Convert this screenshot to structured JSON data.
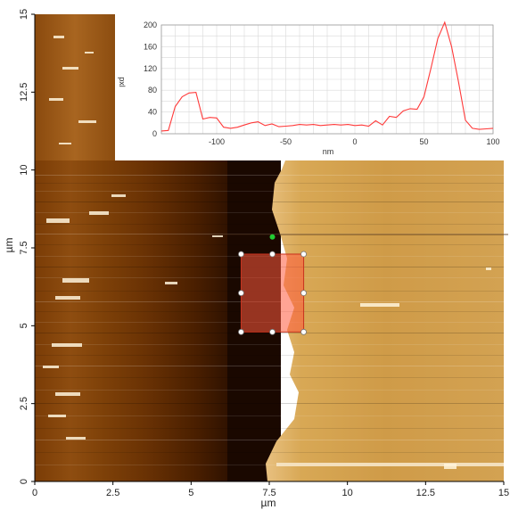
{
  "main_image": {
    "x_axis": {
      "label": "µm",
      "ticks": [
        {
          "value": 0,
          "text": "0"
        },
        {
          "value": 2.5,
          "text": "2.5"
        },
        {
          "value": 5,
          "text": "5"
        },
        {
          "value": 7.5,
          "text": "7.5"
        },
        {
          "value": 10,
          "text": "10"
        },
        {
          "value": 12.5,
          "text": "12.5"
        },
        {
          "value": 15,
          "text": "15"
        }
      ],
      "range": [
        0,
        15
      ]
    },
    "y_axis": {
      "label": "µm",
      "ticks": [
        {
          "value": 0,
          "text": "0"
        },
        {
          "value": 2.5,
          "text": "2.5"
        },
        {
          "value": 5,
          "text": "5"
        },
        {
          "value": 7.5,
          "text": "7.5"
        },
        {
          "value": 10,
          "text": "10"
        },
        {
          "value": 12.5,
          "text": "12.5"
        },
        {
          "value": 15,
          "text": "15"
        }
      ],
      "range": [
        0,
        15
      ]
    },
    "selection": {
      "x0": 6.6,
      "x1": 8.6,
      "y0": 4.8,
      "y1": 7.3
    },
    "marker": {
      "x": 7.6,
      "y": 7.85
    },
    "colors": {
      "selection_fill": "#ff5a3c",
      "selection_stroke": "#c8321e",
      "marker": "#22cc33"
    }
  },
  "chart_data": {
    "type": "line",
    "xlabel": "nm",
    "ylabel": "pxl",
    "xlim": [
      -140,
      100
    ],
    "ylim": [
      0,
      200
    ],
    "xticks": [
      -100,
      -50,
      0,
      50,
      100
    ],
    "yticks": [
      0,
      40,
      80,
      120,
      160,
      200
    ],
    "grid": true,
    "color": "#ff3a3a",
    "x": [
      -140,
      -135,
      -130,
      -125,
      -120,
      -115,
      -110,
      -105,
      -100,
      -95,
      -90,
      -85,
      -80,
      -75,
      -70,
      -65,
      -60,
      -55,
      -50,
      -45,
      -40,
      -35,
      -30,
      -25,
      -20,
      -15,
      -10,
      -5,
      0,
      5,
      10,
      15,
      20,
      25,
      30,
      35,
      40,
      45,
      50,
      55,
      60,
      65,
      70,
      75,
      80,
      85,
      90,
      95,
      100
    ],
    "y": [
      5,
      6,
      50,
      68,
      75,
      76,
      27,
      30,
      29,
      12,
      10,
      12,
      16,
      20,
      22,
      15,
      18,
      13,
      14,
      15,
      17,
      16,
      17,
      15,
      16,
      17,
      16,
      17,
      15,
      16,
      14,
      24,
      16,
      32,
      30,
      42,
      46,
      45,
      68,
      120,
      175,
      205,
      160,
      95,
      25,
      10,
      8,
      9,
      10
    ]
  }
}
